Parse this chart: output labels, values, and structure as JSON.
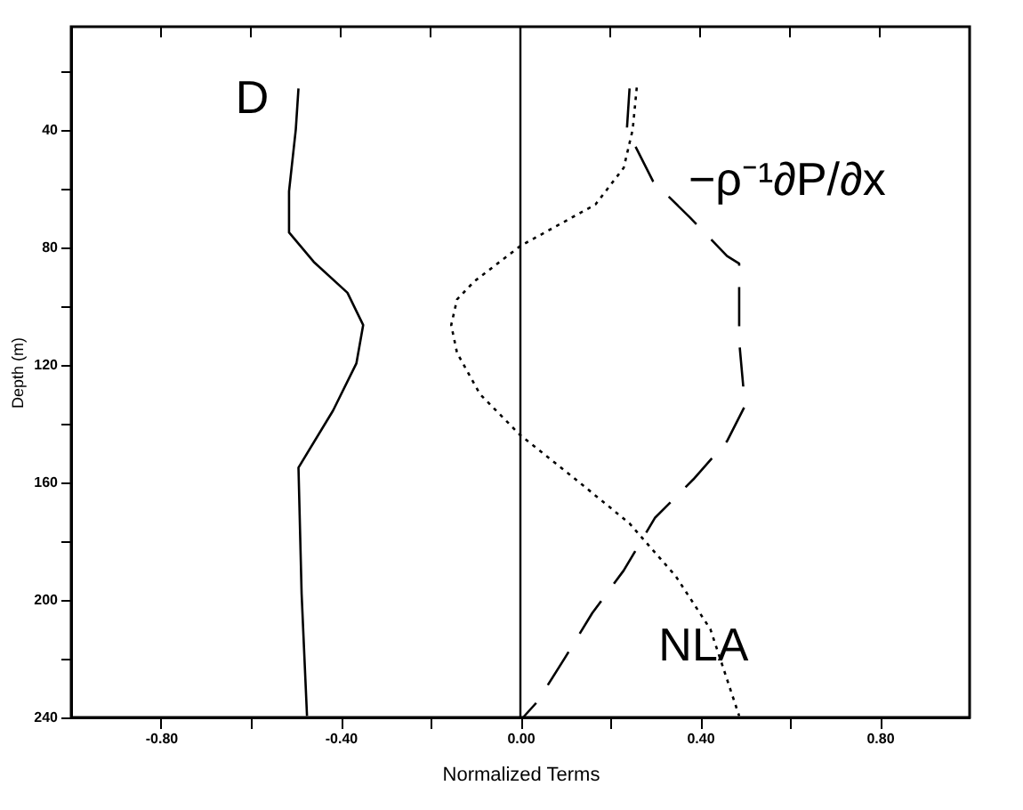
{
  "chart_data": {
    "type": "line",
    "xlabel": "Normalized Terms",
    "ylabel": "Depth (m)",
    "xlim": [
      -1.0,
      1.0
    ],
    "ylim": [
      240,
      5
    ],
    "xticks": [
      {
        "value": -0.8,
        "label": "-0.80"
      },
      {
        "value": -0.6,
        "label": null
      },
      {
        "value": -0.4,
        "label": "-0.40"
      },
      {
        "value": -0.2,
        "label": null
      },
      {
        "value": 0,
        "label": "0.00"
      },
      {
        "value": 0.2,
        "label": null
      },
      {
        "value": 0.4,
        "label": "0.40"
      },
      {
        "value": 0.6,
        "label": null
      },
      {
        "value": 0.8,
        "label": "0.80"
      }
    ],
    "yticks": [
      {
        "value": 20,
        "label": null
      },
      40,
      {
        "value": 60,
        "label": null
      },
      80,
      {
        "value": 100,
        "label": null
      },
      120,
      {
        "value": 140,
        "label": null
      },
      160,
      {
        "value": 180,
        "label": null
      },
      200,
      {
        "value": 220,
        "label": null
      },
      240
    ],
    "grid": false,
    "marker": "none",
    "series": [
      {
        "name": "D",
        "color": "#000000",
        "line_style": "solid",
        "x": [
          -0.494,
          -0.5,
          -0.515,
          -0.515,
          -0.46,
          -0.385,
          -0.35,
          -0.365,
          -0.417,
          -0.494,
          -0.487,
          -0.475
        ],
        "values": [
          26,
          40,
          61,
          75,
          85,
          95.5,
          106.5,
          119.5,
          135.6,
          155,
          198,
          239.5
        ]
      },
      {
        "name": "NLA",
        "color": "#000000",
        "line_style": "dotted",
        "x": [
          0.259,
          0.25,
          0.23,
          0.167,
          0.0,
          -0.103,
          -0.141,
          -0.154,
          -0.141,
          -0.09,
          0.0,
          0.115,
          0.243,
          0.346,
          0.423,
          0.487
        ],
        "values": [
          25.7,
          40,
          53,
          65.5,
          79.6,
          91.7,
          97.8,
          106.5,
          116,
          130,
          144,
          158,
          174,
          192,
          210,
          239.5
        ]
      },
      {
        "name": "−ρ⁻¹∂P/∂x",
        "color": "#000000",
        "line_style": "dashed",
        "x": [
          0.243,
          0.237,
          0.295,
          0.378,
          0.46,
          0.487,
          0.487,
          0.487,
          0.5,
          0.46,
          0.385,
          0.3,
          0.23,
          0.16,
          0.1,
          0.038,
          0.006
        ],
        "values": [
          26,
          40,
          57.5,
          70,
          83,
          85.6,
          97.8,
          112,
          134,
          146,
          159,
          172,
          190,
          204.5,
          219.5,
          234.6,
          240
        ]
      }
    ],
    "ref_lines": [
      {
        "axis": "x",
        "value": 0,
        "color": "#000000",
        "line_style": "solid"
      }
    ]
  }
}
